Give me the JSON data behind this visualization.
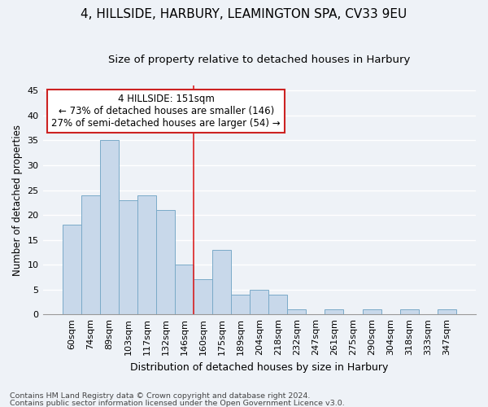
{
  "title1": "4, HILLSIDE, HARBURY, LEAMINGTON SPA, CV33 9EU",
  "title2": "Size of property relative to detached houses in Harbury",
  "xlabel": "Distribution of detached houses by size in Harbury",
  "ylabel": "Number of detached properties",
  "bar_labels": [
    "60sqm",
    "74sqm",
    "89sqm",
    "103sqm",
    "117sqm",
    "132sqm",
    "146sqm",
    "160sqm",
    "175sqm",
    "189sqm",
    "204sqm",
    "218sqm",
    "232sqm",
    "247sqm",
    "261sqm",
    "275sqm",
    "290sqm",
    "304sqm",
    "318sqm",
    "333sqm",
    "347sqm"
  ],
  "bar_values": [
    18,
    24,
    35,
    23,
    24,
    21,
    10,
    7,
    13,
    4,
    5,
    4,
    1,
    0,
    1,
    0,
    1,
    0,
    1,
    0,
    1
  ],
  "bar_color": "#c8d8ea",
  "bar_edgecolor": "#7aaac8",
  "vline_x": 6.5,
  "vline_color": "#dd2222",
  "annotation_text1": "4 HILLSIDE: 151sqm",
  "annotation_text2": "← 73% of detached houses are smaller (146)",
  "annotation_text3": "27% of semi-detached houses are larger (54) →",
  "annotation_box_facecolor": "#ffffff",
  "annotation_box_edgecolor": "#cc2222",
  "ylim": [
    0,
    46
  ],
  "yticks": [
    0,
    5,
    10,
    15,
    20,
    25,
    30,
    35,
    40,
    45
  ],
  "footer1": "Contains HM Land Registry data © Crown copyright and database right 2024.",
  "footer2": "Contains public sector information licensed under the Open Government Licence v3.0.",
  "bg_color": "#eef2f7",
  "grid_color": "#ffffff",
  "title1_fontsize": 11,
  "title2_fontsize": 9.5,
  "tick_fontsize": 8,
  "ylabel_fontsize": 8.5,
  "xlabel_fontsize": 9,
  "annotation_fontsize": 8.5,
  "footer_fontsize": 6.8
}
